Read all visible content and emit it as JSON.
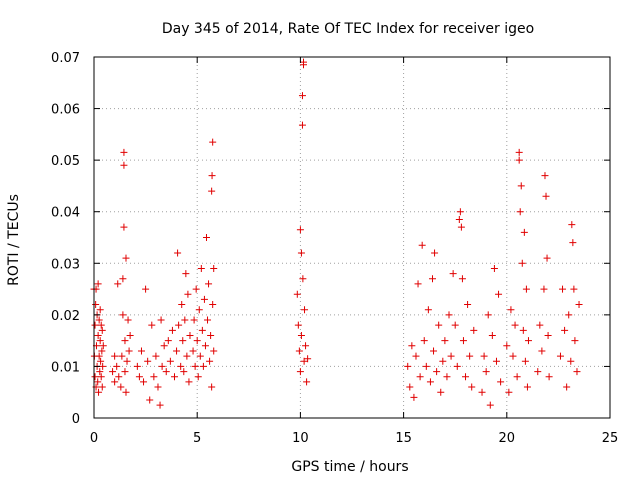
{
  "chart_data": {
    "type": "scatter",
    "title": "Day 345 of 2014, Rate Of TEC Index for receiver igeo",
    "xlabel": "GPS time / hours",
    "ylabel": "ROTI / TECUs",
    "xlim": [
      0,
      25
    ],
    "ylim": [
      0,
      0.07
    ],
    "xticks": [
      0,
      5,
      10,
      15,
      20,
      25
    ],
    "xtick_labels": [
      "0",
      "5",
      "10",
      "15",
      "20",
      "25"
    ],
    "yticks": [
      0,
      0.01,
      0.02,
      0.03,
      0.04,
      0.05,
      0.06,
      0.07
    ],
    "ytick_labels": [
      "0",
      "0.01",
      "0.02",
      "0.03",
      "0.04",
      "0.05",
      "0.06",
      "0.07"
    ],
    "grid": true,
    "marker": "+",
    "color": "#e00000",
    "series": [
      {
        "name": "ROTI",
        "points": [
          [
            0.0,
            0.025
          ],
          [
            0.02,
            0.012
          ],
          [
            0.05,
            0.018
          ],
          [
            0.05,
            0.008
          ],
          [
            0.08,
            0.022
          ],
          [
            0.1,
            0.006
          ],
          [
            0.1,
            0.025
          ],
          [
            0.12,
            0.014
          ],
          [
            0.15,
            0.01
          ],
          [
            0.15,
            0.02
          ],
          [
            0.18,
            0.007
          ],
          [
            0.2,
            0.016
          ],
          [
            0.2,
            0.026
          ],
          [
            0.22,
            0.005
          ],
          [
            0.25,
            0.012
          ],
          [
            0.25,
            0.019
          ],
          [
            0.28,
            0.009
          ],
          [
            0.3,
            0.015
          ],
          [
            0.3,
            0.021
          ],
          [
            0.32,
            0.011
          ],
          [
            0.35,
            0.008
          ],
          [
            0.35,
            0.018
          ],
          [
            0.38,
            0.013
          ],
          [
            0.4,
            0.006
          ],
          [
            0.4,
            0.017
          ],
          [
            0.42,
            0.01
          ],
          [
            0.45,
            0.014
          ],
          [
            0.9,
            0.009
          ],
          [
            1.0,
            0.012
          ],
          [
            1.0,
            0.007
          ],
          [
            1.1,
            0.01
          ],
          [
            1.15,
            0.026
          ],
          [
            1.2,
            0.008
          ],
          [
            1.3,
            0.006
          ],
          [
            1.35,
            0.012
          ],
          [
            1.4,
            0.02
          ],
          [
            1.4,
            0.027
          ],
          [
            1.45,
            0.049
          ],
          [
            1.45,
            0.0515
          ],
          [
            1.45,
            0.037
          ],
          [
            1.5,
            0.015
          ],
          [
            1.5,
            0.009
          ],
          [
            1.55,
            0.031
          ],
          [
            1.55,
            0.005
          ],
          [
            1.6,
            0.011
          ],
          [
            1.65,
            0.019
          ],
          [
            1.7,
            0.013
          ],
          [
            1.75,
            0.016
          ],
          [
            2.1,
            0.01
          ],
          [
            2.2,
            0.008
          ],
          [
            2.3,
            0.013
          ],
          [
            2.4,
            0.007
          ],
          [
            2.5,
            0.025
          ],
          [
            2.6,
            0.011
          ],
          [
            2.7,
            0.0035
          ],
          [
            2.8,
            0.018
          ],
          [
            2.9,
            0.008
          ],
          [
            3.0,
            0.012
          ],
          [
            3.1,
            0.006
          ],
          [
            3.2,
            0.0025
          ],
          [
            3.25,
            0.019
          ],
          [
            3.3,
            0.01
          ],
          [
            3.4,
            0.014
          ],
          [
            3.5,
            0.009
          ],
          [
            3.6,
            0.015
          ],
          [
            3.7,
            0.011
          ],
          [
            3.8,
            0.017
          ],
          [
            3.9,
            0.008
          ],
          [
            4.0,
            0.013
          ],
          [
            4.05,
            0.032
          ],
          [
            4.1,
            0.018
          ],
          [
            4.2,
            0.01
          ],
          [
            4.25,
            0.022
          ],
          [
            4.3,
            0.015
          ],
          [
            4.35,
            0.009
          ],
          [
            4.4,
            0.019
          ],
          [
            4.45,
            0.028
          ],
          [
            4.5,
            0.012
          ],
          [
            4.55,
            0.024
          ],
          [
            4.6,
            0.007
          ],
          [
            4.65,
            0.016
          ],
          [
            4.8,
            0.013
          ],
          [
            4.85,
            0.019
          ],
          [
            4.9,
            0.01
          ],
          [
            4.95,
            0.025
          ],
          [
            5.0,
            0.015
          ],
          [
            5.05,
            0.008
          ],
          [
            5.1,
            0.021
          ],
          [
            5.15,
            0.012
          ],
          [
            5.2,
            0.029
          ],
          [
            5.25,
            0.017
          ],
          [
            5.3,
            0.01
          ],
          [
            5.35,
            0.023
          ],
          [
            5.4,
            0.014
          ],
          [
            5.45,
            0.035
          ],
          [
            5.5,
            0.019
          ],
          [
            5.55,
            0.026
          ],
          [
            5.6,
            0.011
          ],
          [
            5.65,
            0.016
          ],
          [
            5.7,
            0.006
          ],
          [
            5.7,
            0.044
          ],
          [
            5.72,
            0.047
          ],
          [
            5.75,
            0.0535
          ],
          [
            5.75,
            0.022
          ],
          [
            5.8,
            0.013
          ],
          [
            5.8,
            0.029
          ],
          [
            9.85,
            0.024
          ],
          [
            9.9,
            0.018
          ],
          [
            9.95,
            0.013
          ],
          [
            10.0,
            0.009
          ],
          [
            10.0,
            0.0365
          ],
          [
            10.05,
            0.032
          ],
          [
            10.05,
            0.016
          ],
          [
            10.1,
            0.0568
          ],
          [
            10.1,
            0.0625
          ],
          [
            10.12,
            0.027
          ],
          [
            10.15,
            0.0685
          ],
          [
            10.15,
            0.069
          ],
          [
            10.18,
            0.011
          ],
          [
            10.2,
            0.021
          ],
          [
            10.25,
            0.014
          ],
          [
            10.3,
            0.007
          ],
          [
            10.35,
            0.0115
          ],
          [
            15.2,
            0.01
          ],
          [
            15.3,
            0.006
          ],
          [
            15.4,
            0.014
          ],
          [
            15.5,
            0.004
          ],
          [
            15.6,
            0.012
          ],
          [
            15.7,
            0.026
          ],
          [
            15.8,
            0.008
          ],
          [
            15.9,
            0.0335
          ],
          [
            16.0,
            0.015
          ],
          [
            16.1,
            0.01
          ],
          [
            16.2,
            0.021
          ],
          [
            16.3,
            0.007
          ],
          [
            16.4,
            0.027
          ],
          [
            16.45,
            0.013
          ],
          [
            16.5,
            0.032
          ],
          [
            16.6,
            0.009
          ],
          [
            16.7,
            0.018
          ],
          [
            16.8,
            0.005
          ],
          [
            16.9,
            0.011
          ],
          [
            17.0,
            0.015
          ],
          [
            17.1,
            0.008
          ],
          [
            17.2,
            0.02
          ],
          [
            17.3,
            0.012
          ],
          [
            17.4,
            0.028
          ],
          [
            17.5,
            0.018
          ],
          [
            17.6,
            0.01
          ],
          [
            17.7,
            0.0385
          ],
          [
            17.75,
            0.04
          ],
          [
            17.8,
            0.037
          ],
          [
            17.85,
            0.027
          ],
          [
            17.9,
            0.015
          ],
          [
            18.0,
            0.008
          ],
          [
            18.1,
            0.022
          ],
          [
            18.2,
            0.012
          ],
          [
            18.3,
            0.006
          ],
          [
            18.4,
            0.017
          ],
          [
            18.8,
            0.005
          ],
          [
            18.9,
            0.012
          ],
          [
            19.0,
            0.009
          ],
          [
            19.1,
            0.02
          ],
          [
            19.2,
            0.0025
          ],
          [
            19.3,
            0.016
          ],
          [
            19.4,
            0.029
          ],
          [
            19.5,
            0.011
          ],
          [
            19.6,
            0.024
          ],
          [
            19.7,
            0.007
          ],
          [
            20.0,
            0.014
          ],
          [
            20.1,
            0.005
          ],
          [
            20.2,
            0.021
          ],
          [
            20.3,
            0.012
          ],
          [
            20.4,
            0.018
          ],
          [
            20.5,
            0.008
          ],
          [
            20.6,
            0.0515
          ],
          [
            20.6,
            0.05
          ],
          [
            20.65,
            0.04
          ],
          [
            20.7,
            0.045
          ],
          [
            20.75,
            0.03
          ],
          [
            20.8,
            0.017
          ],
          [
            20.85,
            0.036
          ],
          [
            20.9,
            0.011
          ],
          [
            20.95,
            0.025
          ],
          [
            21.0,
            0.006
          ],
          [
            21.05,
            0.015
          ],
          [
            21.5,
            0.009
          ],
          [
            21.6,
            0.018
          ],
          [
            21.7,
            0.013
          ],
          [
            21.8,
            0.025
          ],
          [
            21.85,
            0.047
          ],
          [
            21.9,
            0.043
          ],
          [
            21.95,
            0.031
          ],
          [
            22.0,
            0.016
          ],
          [
            22.05,
            0.008
          ],
          [
            22.6,
            0.012
          ],
          [
            22.7,
            0.025
          ],
          [
            22.8,
            0.017
          ],
          [
            22.9,
            0.006
          ],
          [
            23.0,
            0.02
          ],
          [
            23.1,
            0.011
          ],
          [
            23.15,
            0.0375
          ],
          [
            23.2,
            0.034
          ],
          [
            23.25,
            0.025
          ],
          [
            23.3,
            0.015
          ],
          [
            23.4,
            0.009
          ],
          [
            23.5,
            0.022
          ]
        ]
      }
    ]
  }
}
